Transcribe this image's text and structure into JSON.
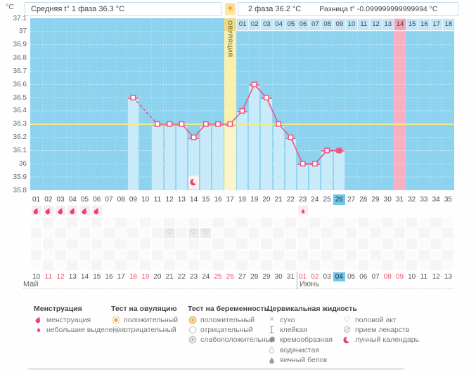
{
  "header": {
    "unit": "°C",
    "phase1_label": "Средняя t° 1 фаза 36.3 °C",
    "phase2_label": "2 фаза 36.2 °C",
    "difference_label": "Разница t° -0.099999999999994 °C"
  },
  "chart_data": {
    "type": "line",
    "ylabel": "°C",
    "ylim": [
      35.8,
      37.1
    ],
    "ytick_step": 0.1,
    "total_days": 35,
    "coverline_temp": 36.3,
    "ovulation_day": 17,
    "ovulation_label": "ОВУЛЯЦИЯ",
    "expected_period_day": 31,
    "current_cycle_day": 26,
    "lunar_marker_day": 14,
    "temperatures": [
      {
        "day": 9,
        "temp": 36.5
      },
      {
        "day": 11,
        "temp": 36.3
      },
      {
        "day": 12,
        "temp": 36.3
      },
      {
        "day": 13,
        "temp": 36.3
      },
      {
        "day": 14,
        "temp": 36.2
      },
      {
        "day": 15,
        "temp": 36.3
      },
      {
        "day": 16,
        "temp": 36.3
      },
      {
        "day": 17,
        "temp": 36.3
      },
      {
        "day": 18,
        "temp": 36.4
      },
      {
        "day": 19,
        "temp": 36.6
      },
      {
        "day": 20,
        "temp": 36.5
      },
      {
        "day": 21,
        "temp": 36.3
      },
      {
        "day": 22,
        "temp": 36.2
      },
      {
        "day": 23,
        "temp": 36.0
      },
      {
        "day": 24,
        "temp": 36.0
      },
      {
        "day": 25,
        "temp": 36.1
      },
      {
        "day": 26,
        "temp": 36.1
      }
    ],
    "dpo_labels": [
      "01",
      "02",
      "03",
      "04",
      "05",
      "06",
      "07",
      "08",
      "09",
      "10",
      "11",
      "12",
      "13",
      "14",
      "15",
      "16",
      "17",
      "18"
    ],
    "dpo_highlighted": "14"
  },
  "cycle_day_labels": [
    "01",
    "02",
    "03",
    "04",
    "05",
    "06",
    "07",
    "08",
    "09",
    "10",
    "11",
    "12",
    "13",
    "14",
    "15",
    "16",
    "17",
    "18",
    "19",
    "20",
    "21",
    "22",
    "23",
    "24",
    "25",
    "26",
    "27",
    "28",
    "29",
    "30",
    "31",
    "32",
    "33",
    "34",
    "35"
  ],
  "menstruation_days": [
    1,
    2,
    3,
    4,
    5,
    6
  ],
  "spotting_days": [
    23
  ],
  "intercourse_days": [
    12,
    14,
    15
  ],
  "calendar": {
    "months": [
      {
        "label": "Май",
        "start_cycle_day": 1,
        "dates": [
          "10",
          "11",
          "12",
          "13",
          "14",
          "15",
          "16",
          "17",
          "18",
          "19",
          "20",
          "21",
          "22",
          "23",
          "24",
          "25",
          "26",
          "27",
          "28",
          "29",
          "30",
          "31"
        ],
        "weekend_dates": [
          "11",
          "12",
          "18",
          "19",
          "25",
          "26"
        ]
      },
      {
        "label": "Июнь",
        "start_cycle_day": 23,
        "dates": [
          "01",
          "02",
          "03",
          "04",
          "05",
          "06",
          "07",
          "08",
          "09",
          "10",
          "11",
          "12",
          "13"
        ],
        "weekend_dates": [
          "01",
          "02",
          "08",
          "09"
        ],
        "today_date": "04"
      }
    ]
  },
  "legend": {
    "columns": [
      {
        "title": "Менструация",
        "items": [
          {
            "icon": "drop-icon",
            "label": "менструация"
          },
          {
            "icon": "small-drop-icon",
            "label": "небольшие выделения"
          }
        ]
      },
      {
        "title": "Тест на овуляцию",
        "items": [
          {
            "icon": "ovulation-positive-icon",
            "label": "положительный"
          },
          {
            "icon": "ovulation-negative-icon",
            "label": "отрицательный"
          }
        ]
      },
      {
        "title": "Тест на беременность",
        "items": [
          {
            "icon": "pregnancy-positive-icon",
            "label": "положительный"
          },
          {
            "icon": "pregnancy-negative-icon",
            "label": "отрицательный"
          },
          {
            "icon": "pregnancy-weak-icon",
            "label": "слабоположительный"
          }
        ]
      },
      {
        "title": "Цервикальная жидкость",
        "items": [
          {
            "icon": "dry-icon",
            "label": "сухо"
          },
          {
            "icon": "sticky-icon",
            "label": "клейкая"
          },
          {
            "icon": "creamy-icon",
            "label": "кремообразная"
          },
          {
            "icon": "watery-icon",
            "label": "водянистая"
          },
          {
            "icon": "eggwhite-icon",
            "label": "яичный белок"
          }
        ]
      },
      {
        "title": "",
        "items": [
          {
            "icon": "heart-icon",
            "label": "половой акт"
          },
          {
            "icon": "pill-icon",
            "label": "прием лекарств"
          },
          {
            "icon": "moon-icon",
            "label": "лунный календарь"
          }
        ]
      }
    ]
  },
  "colors": {
    "chart_bg": "#8DD3F0",
    "bar": "#C9EAF9",
    "bar_in_ovulation": "#FBF4C8",
    "bar_top": "#F0719A",
    "line": "#EE5580",
    "coverline": "#F2EC86",
    "ovulation_band": "#FAF0AC",
    "ovulation_band_header": "#EEDC80",
    "period_band": "#F8AFC2",
    "period_band_header": "#F59EB4",
    "dpo_cell": "#C2E6F7",
    "today_highlight": "#70C7ED",
    "weekend_text": "#E8546E",
    "menstruation": "#F0406E",
    "heart": "#F06A9B",
    "moon": "#E8456A",
    "test_positive": "#F2A43C"
  }
}
